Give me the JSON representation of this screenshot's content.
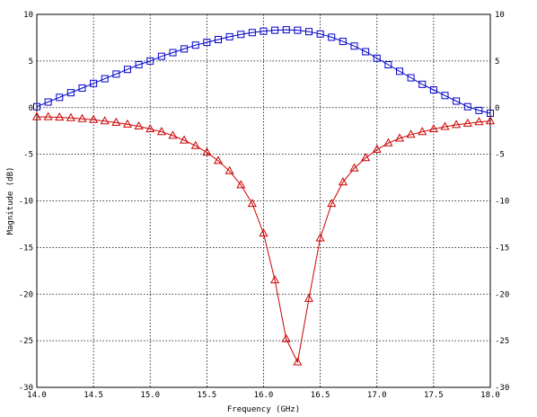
{
  "chart_data": {
    "type": "line",
    "xlabel": "Frequency (GHz)",
    "ylabel": "Magnitude (dB)",
    "xlim": [
      14.0,
      18.0
    ],
    "ylim": [
      -30,
      10
    ],
    "x_ticks": [
      14.0,
      14.5,
      15.0,
      15.5,
      16.0,
      16.5,
      17.0,
      17.5,
      18.0
    ],
    "x_tick_labels": [
      "14.0",
      "14.5",
      "15.0",
      "15.5",
      "16.0",
      "16.5",
      "17.0",
      "17.5",
      "18.0"
    ],
    "y_ticks": [
      10,
      5,
      0,
      -5,
      -10,
      -15,
      -20,
      -25,
      -30
    ],
    "y_tick_labels": [
      "10",
      "5",
      "0",
      "-5",
      "-10",
      "-15",
      "-20",
      "-25",
      "-30"
    ],
    "grid": true,
    "series": [
      {
        "marker": "square",
        "color": "#0000cc",
        "x": [
          14.0,
          14.1,
          14.2,
          14.3,
          14.4,
          14.5,
          14.6,
          14.7,
          14.8,
          14.9,
          15.0,
          15.1,
          15.2,
          15.3,
          15.4,
          15.5,
          15.6,
          15.7,
          15.8,
          15.9,
          16.0,
          16.1,
          16.2,
          16.3,
          16.4,
          16.5,
          16.6,
          16.7,
          16.8,
          16.9,
          17.0,
          17.1,
          17.2,
          17.3,
          17.4,
          17.5,
          17.6,
          17.7,
          17.8,
          17.9,
          18.0
        ],
        "y": [
          0.1,
          0.6,
          1.1,
          1.6,
          2.1,
          2.6,
          3.1,
          3.6,
          4.1,
          4.6,
          5.0,
          5.5,
          5.9,
          6.3,
          6.7,
          7.0,
          7.3,
          7.6,
          7.85,
          8.05,
          8.2,
          8.3,
          8.35,
          8.3,
          8.15,
          7.9,
          7.55,
          7.1,
          6.6,
          6.0,
          5.3,
          4.6,
          3.9,
          3.2,
          2.5,
          1.9,
          1.3,
          0.7,
          0.1,
          -0.3,
          -0.6
        ]
      },
      {
        "marker": "triangle",
        "color": "#cc0000",
        "x": [
          14.0,
          14.1,
          14.2,
          14.3,
          14.4,
          14.5,
          14.6,
          14.7,
          14.8,
          14.9,
          15.0,
          15.1,
          15.2,
          15.3,
          15.4,
          15.5,
          15.6,
          15.7,
          15.8,
          15.9,
          16.0,
          16.1,
          16.2,
          16.3,
          16.4,
          16.5,
          16.6,
          16.7,
          16.8,
          16.9,
          17.0,
          17.1,
          17.2,
          17.3,
          17.4,
          17.5,
          17.6,
          17.7,
          17.8,
          17.9,
          18.0
        ],
        "y": [
          -1.0,
          -1.0,
          -1.05,
          -1.1,
          -1.2,
          -1.3,
          -1.45,
          -1.6,
          -1.8,
          -2.0,
          -2.3,
          -2.6,
          -3.0,
          -3.5,
          -4.1,
          -4.8,
          -5.7,
          -6.8,
          -8.3,
          -10.3,
          -13.5,
          -18.5,
          -24.8,
          -27.3,
          -20.5,
          -14.0,
          -10.3,
          -8.0,
          -6.5,
          -5.4,
          -4.5,
          -3.8,
          -3.3,
          -2.9,
          -2.6,
          -2.3,
          -2.05,
          -1.85,
          -1.7,
          -1.55,
          -1.45
        ]
      }
    ]
  }
}
